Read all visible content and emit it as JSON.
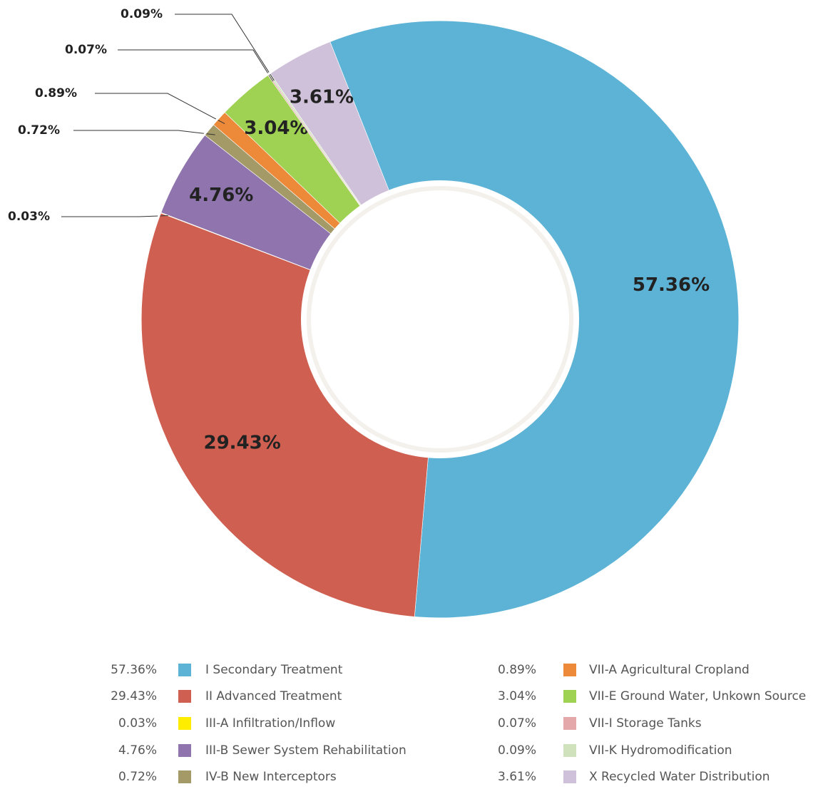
{
  "chart_data": {
    "type": "donut",
    "categories": [
      "I Secondary Treatment",
      "II Advanced Treatment",
      "III-A Infiltration/Inflow",
      "III-B Sewer System Rehabilitation",
      "IV-B New Interceptors",
      "VII-A Agricultural Cropland",
      "VII-E Ground Water, Unkown Source",
      "VII-I Storage Tanks",
      "VII-K Hydromodification",
      "X Recycled Water Distribution"
    ],
    "values": [
      57.36,
      29.43,
      0.03,
      4.76,
      0.72,
      0.89,
      3.04,
      0.07,
      0.09,
      3.61
    ],
    "value_labels": [
      "57.36%",
      "29.43%",
      "0.03%",
      "4.76%",
      "0.72%",
      "0.89%",
      "3.04%",
      "0.07%",
      "0.09%",
      "3.61%"
    ],
    "colors": [
      "#5db3d6",
      "#cf5f50",
      "#ffed00",
      "#8f74ad",
      "#a39a68",
      "#ec8a3a",
      "#9fd153",
      "#e4a8ab",
      "#cfe2bb",
      "#cfc1da"
    ]
  }
}
